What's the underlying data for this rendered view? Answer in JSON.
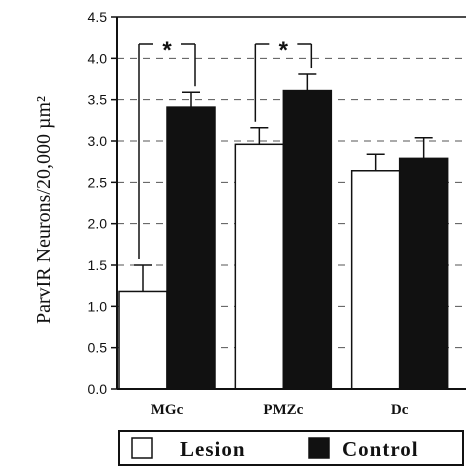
{
  "chart_data": {
    "type": "bar",
    "title": "",
    "xlabel": "",
    "ylabel": "ParvIR Neurons/20,000 µm²",
    "ylim": [
      0,
      4.5
    ],
    "yticks": [
      "0.0",
      "0.5",
      "1.0",
      "1.5",
      "2.0",
      "2.5",
      "3.0",
      "3.5",
      "4.0",
      "4.5"
    ],
    "grid": "horizontal dashed",
    "categories": [
      "MGc",
      "PMZc",
      "Dc"
    ],
    "series": [
      {
        "name": "Lesion",
        "color": "#ffffff",
        "values": [
          1.18,
          2.96,
          2.64
        ],
        "errors": [
          0.32,
          0.2,
          0.2
        ]
      },
      {
        "name": "Control",
        "color": "#111111",
        "values": [
          3.41,
          3.61,
          2.79
        ],
        "errors": [
          0.18,
          0.2,
          0.25
        ]
      }
    ],
    "significance": [
      {
        "category": "MGc",
        "label": "*"
      },
      {
        "category": "PMZc",
        "label": "*"
      }
    ],
    "legend": {
      "placement": "bottom",
      "items": [
        "Lesion",
        "Control"
      ]
    }
  }
}
